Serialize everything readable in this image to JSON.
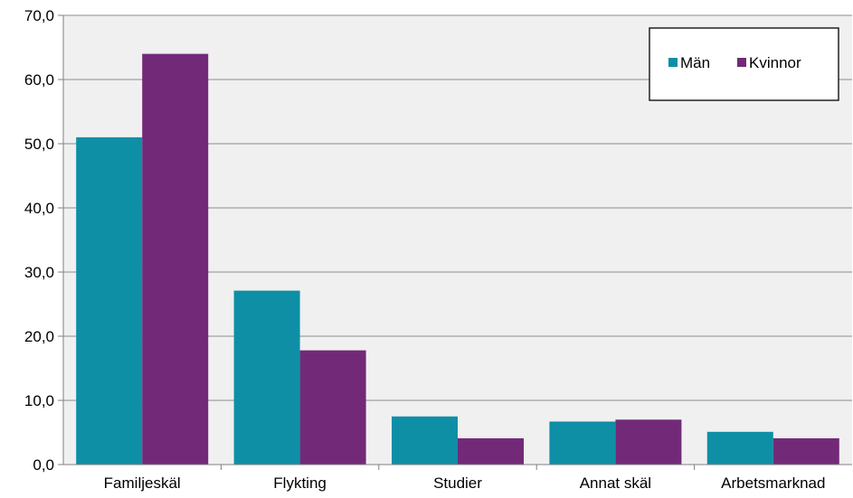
{
  "chart_data": {
    "type": "bar",
    "title": "",
    "xlabel": "",
    "ylabel": "",
    "categories": [
      "Familjeskäl",
      "Flykting",
      "Studier",
      "Annat skäl",
      "Arbetsmarknad"
    ],
    "series": [
      {
        "name": "Män",
        "color": "#0e8fa6",
        "values": [
          51.0,
          27.1,
          7.5,
          6.7,
          5.1
        ]
      },
      {
        "name": "Kvinnor",
        "color": "#722a78",
        "values": [
          64.0,
          17.8,
          4.1,
          7.0,
          4.1
        ]
      }
    ],
    "ylim": [
      0,
      70
    ],
    "yticks": [
      "0,0",
      "10,0",
      "20,0",
      "30,0",
      "40,0",
      "50,0",
      "60,0",
      "70,0"
    ],
    "grid": true,
    "legend": "top-right",
    "colors": {
      "plot_background": "#f0f0f0",
      "gridline": "#8c8c8c"
    }
  }
}
